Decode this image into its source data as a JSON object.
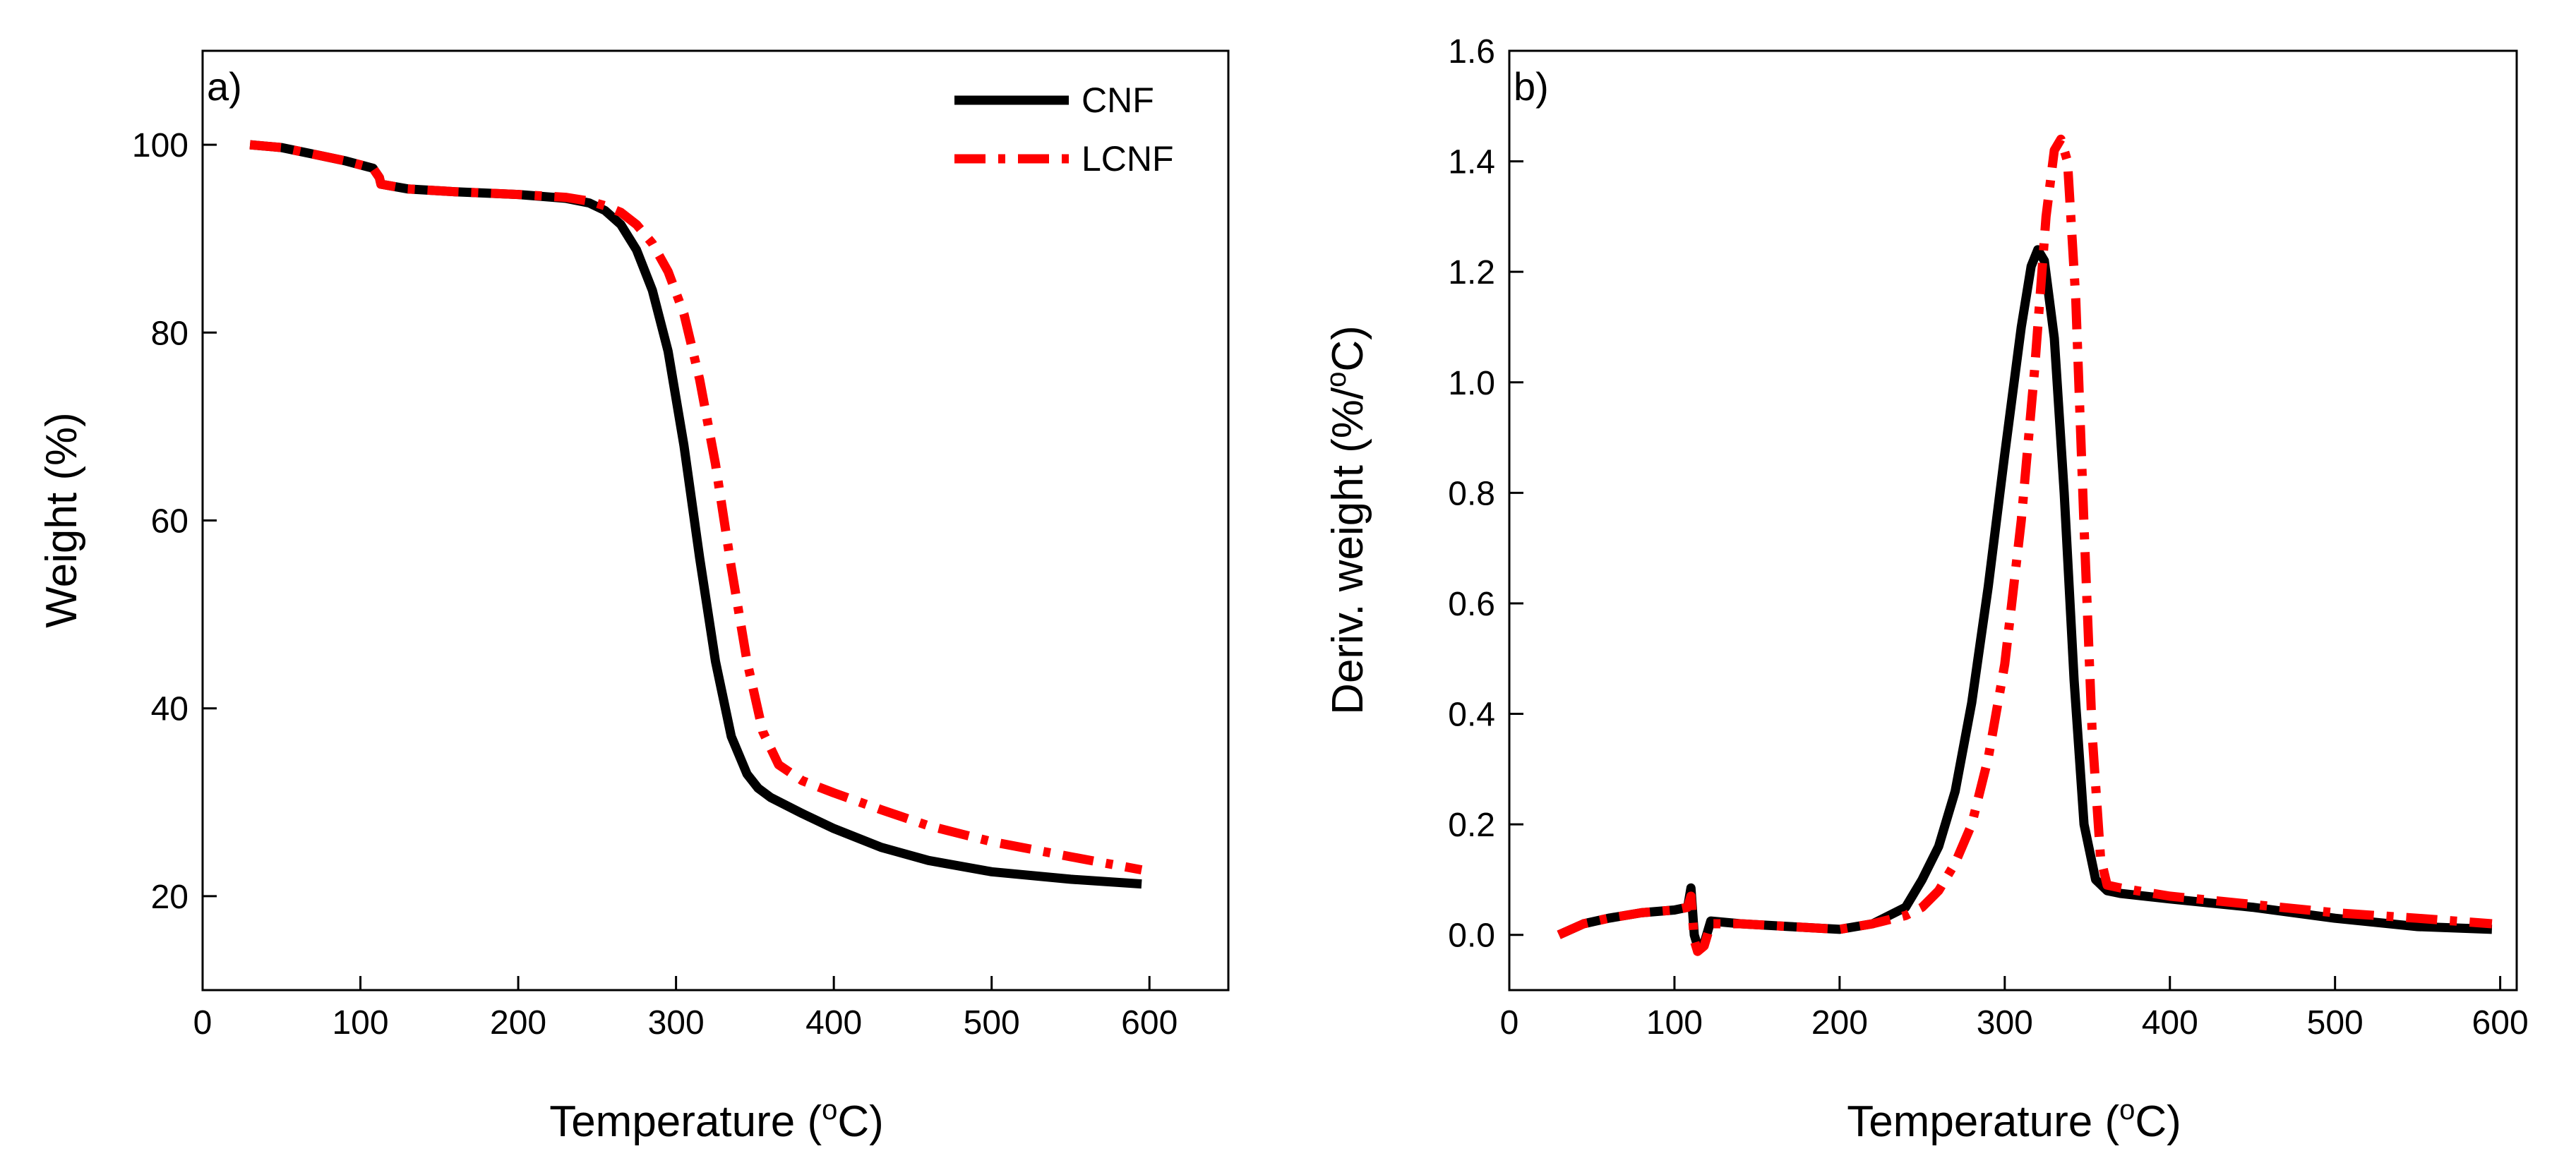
{
  "chart_data": [
    {
      "type": "line",
      "panel_label": "a)",
      "xlabel": "Temperature (",
      "xlabel_sup": "o",
      "xlabel_suffix": "C)",
      "ylabel": "Weight (%)",
      "xlim": [
        0,
        650
      ],
      "ylim": [
        10,
        110
      ],
      "xticks": [
        0,
        100,
        200,
        300,
        400,
        500,
        600
      ],
      "yticks": [
        20,
        40,
        60,
        80,
        100
      ],
      "xtick_labels": [
        "0",
        "100",
        "200",
        "300",
        "400",
        "500",
        "600"
      ],
      "ytick_labels": [
        "20",
        "40",
        "60",
        "80",
        "100"
      ],
      "legend": {
        "position": "top-right",
        "entries": [
          "CNF",
          "LCNF"
        ]
      },
      "series": [
        {
          "name": "CNF",
          "color": "#000000",
          "style": "solid",
          "x": [
            30,
            50,
            70,
            90,
            108,
            112,
            113,
            130,
            160,
            200,
            230,
            245,
            255,
            265,
            275,
            285,
            295,
            305,
            315,
            325,
            335,
            345,
            352,
            360,
            380,
            400,
            430,
            460,
            500,
            550,
            595
          ],
          "y": [
            100,
            99.7,
            99,
            98.3,
            97.5,
            96.5,
            95.8,
            95.3,
            95.0,
            94.7,
            94.3,
            93.8,
            93.0,
            91.5,
            88.8,
            84.5,
            78,
            68,
            56,
            45,
            37,
            33,
            31.5,
            30.5,
            28.8,
            27.2,
            25.2,
            23.8,
            22.6,
            21.8,
            21.3
          ]
        },
        {
          "name": "LCNF",
          "color": "#ff0000",
          "style": "dash-dot",
          "x": [
            30,
            50,
            70,
            90,
            108,
            112,
            113,
            130,
            160,
            200,
            230,
            245,
            255,
            265,
            275,
            285,
            295,
            305,
            315,
            325,
            335,
            345,
            355,
            365,
            380,
            400,
            430,
            460,
            500,
            550,
            595
          ],
          "y": [
            100,
            99.7,
            99,
            98.3,
            97.5,
            96.5,
            95.8,
            95.3,
            95.0,
            94.7,
            94.4,
            94.0,
            93.5,
            92.8,
            91.5,
            89.5,
            86.5,
            82,
            75,
            66,
            55,
            45,
            37.5,
            34,
            32.3,
            31,
            29.2,
            27.5,
            25.8,
            24.2,
            22.8
          ]
        }
      ]
    },
    {
      "type": "line",
      "panel_label": "b)",
      "xlabel": "Temperature (",
      "xlabel_sup": "o",
      "xlabel_suffix": "C)",
      "ylabel": "Deriv. weight (%/",
      "ylabel_sup": "o",
      "ylabel_suffix": "C)",
      "xlim": [
        0,
        610
      ],
      "ylim": [
        -0.1,
        1.6
      ],
      "xticks": [
        0,
        100,
        200,
        300,
        400,
        500,
        600
      ],
      "yticks": [
        0.0,
        0.2,
        0.4,
        0.6,
        0.8,
        1.0,
        1.2,
        1.4,
        1.6
      ],
      "xtick_labels": [
        "0",
        "100",
        "200",
        "300",
        "400",
        "500",
        "600"
      ],
      "ytick_labels": [
        "0.0",
        "0.2",
        "0.4",
        "0.6",
        "0.8",
        "1.0",
        "1.2",
        "1.4",
        "1.6"
      ],
      "series": [
        {
          "name": "CNF",
          "color": "#000000",
          "style": "solid",
          "x": [
            30,
            45,
            60,
            80,
            100,
            108,
            110,
            112,
            114,
            118,
            122,
            140,
            170,
            200,
            220,
            240,
            250,
            260,
            270,
            280,
            290,
            300,
            310,
            316,
            320,
            324,
            330,
            336,
            342,
            348,
            355,
            362,
            370,
            400,
            450,
            500,
            550,
            595
          ],
          "y": [
            0.0,
            0.02,
            0.03,
            0.04,
            0.045,
            0.05,
            0.085,
            0.0,
            -0.02,
            -0.015,
            0.025,
            0.02,
            0.015,
            0.01,
            0.02,
            0.05,
            0.1,
            0.16,
            0.26,
            0.42,
            0.63,
            0.87,
            1.1,
            1.21,
            1.24,
            1.22,
            1.08,
            0.8,
            0.46,
            0.2,
            0.1,
            0.08,
            0.075,
            0.065,
            0.05,
            0.03,
            0.015,
            0.01
          ]
        },
        {
          "name": "LCNF",
          "color": "#ff0000",
          "style": "dash-dot",
          "x": [
            30,
            45,
            60,
            80,
            100,
            108,
            110,
            112,
            114,
            118,
            122,
            140,
            170,
            200,
            220,
            240,
            250,
            260,
            270,
            280,
            290,
            300,
            310,
            318,
            325,
            330,
            334,
            338,
            343,
            348,
            353,
            358,
            362,
            370,
            400,
            450,
            500,
            550,
            595
          ],
          "y": [
            0.0,
            0.02,
            0.03,
            0.04,
            0.045,
            0.05,
            0.07,
            -0.01,
            -0.03,
            -0.02,
            0.02,
            0.02,
            0.015,
            0.01,
            0.02,
            0.035,
            0.05,
            0.08,
            0.13,
            0.2,
            0.32,
            0.49,
            0.75,
            1.02,
            1.3,
            1.42,
            1.44,
            1.4,
            1.15,
            0.74,
            0.36,
            0.14,
            0.09,
            0.085,
            0.07,
            0.055,
            0.04,
            0.03,
            0.02
          ]
        }
      ]
    }
  ]
}
